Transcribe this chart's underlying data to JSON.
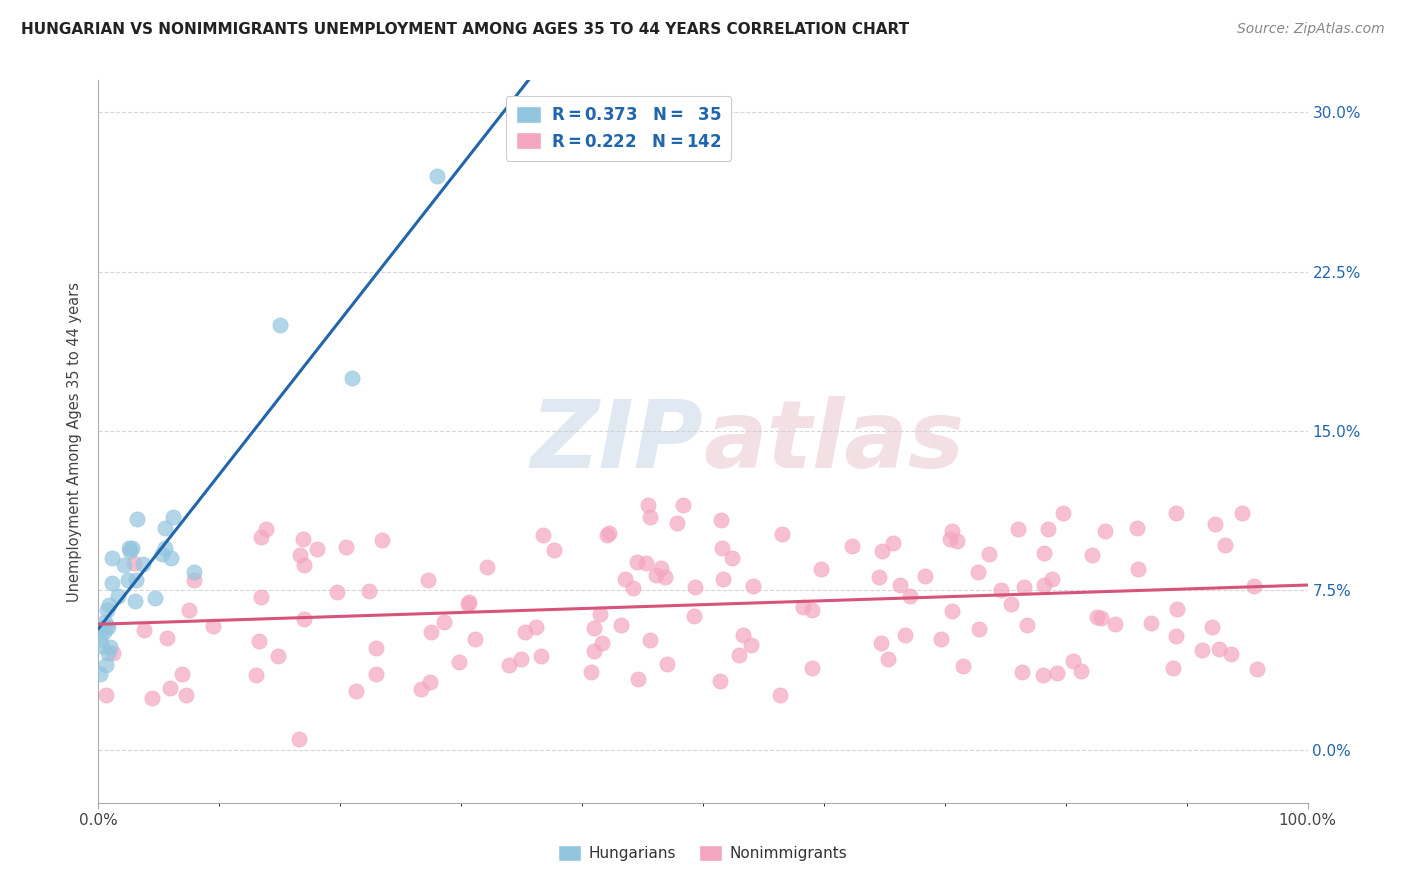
{
  "title": "HUNGARIAN VS NONIMMIGRANTS UNEMPLOYMENT AMONG AGES 35 TO 44 YEARS CORRELATION CHART",
  "source": "Source: ZipAtlas.com",
  "ylabel": "Unemployment Among Ages 35 to 44 years",
  "ytick_labels": [
    "0.0%",
    "7.5%",
    "15.0%",
    "22.5%",
    "30.0%"
  ],
  "ytick_values": [
    0.0,
    0.075,
    0.15,
    0.225,
    0.3
  ],
  "xtick_labels": [
    "0.0%",
    "100.0%"
  ],
  "xtick_values": [
    0.0,
    1.0
  ],
  "xlim": [
    0.0,
    1.0
  ],
  "ylim": [
    -0.025,
    0.315
  ],
  "hungarian_color": "#92c5de",
  "nonimmigrant_color": "#f4a6c0",
  "trendline_hungarian_solid_color": "#2166ac",
  "trendline_hungarian_dashed_color": "#92c5de",
  "trendline_nonimmigrant_color": "#d6537a",
  "watermark_text": "ZIPatlas",
  "watermark_color": "#c8d8e8",
  "watermark_color2": "#e8c8d0",
  "background_color": "#ffffff",
  "grid_color": "#cccccc",
  "R_hungarian": 0.373,
  "N_hungarian": 35,
  "R_nonimmigrant": 0.222,
  "N_nonimmigrant": 142,
  "title_color": "#222222",
  "source_color": "#888888",
  "axis_label_color": "#444444",
  "ytick_color": "#2166ac",
  "xtick_color": "#444444",
  "legend_text_color": "#2166ac",
  "legend_border_color": "#cccccc"
}
